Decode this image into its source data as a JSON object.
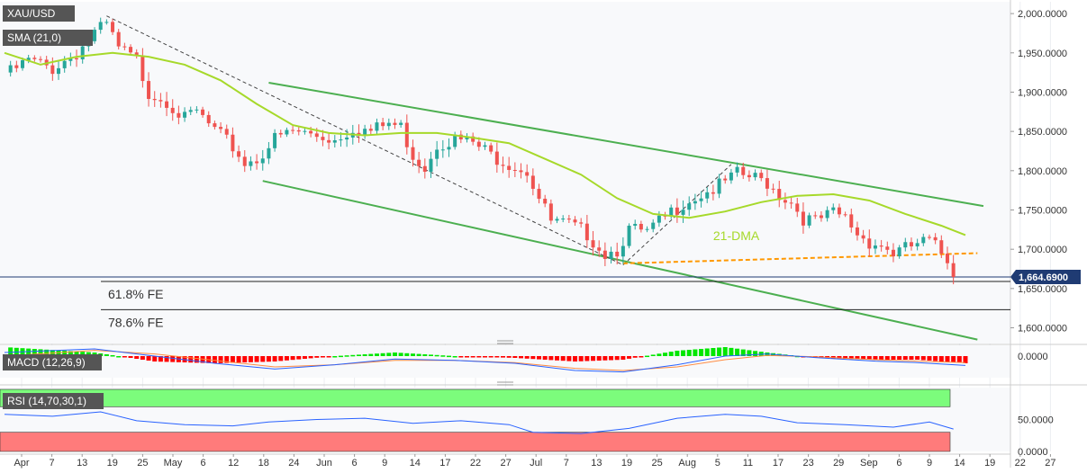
{
  "colors": {
    "up": "#26a69a",
    "down": "#ef5350",
    "sma": "#a6d92a",
    "channel": "#4caf50",
    "dashed_black": "#444444",
    "orange": "#ff9800",
    "macd_line": "#2962ff",
    "signal_line": "#ff8c42",
    "hist_pos": "#00e600",
    "hist_neg": "#ff0000",
    "rsi_line": "#2962ff",
    "overbought": "#7cfc7c",
    "oversold": "#ff7b7b",
    "price_tag": "#1f3b73",
    "legend_bg": "#555555"
  },
  "panels": {
    "price": {
      "symbol": "XAU/USD",
      "indicator": "SMA (21,0)"
    },
    "macd": {
      "label": "MACD (12,26,9)",
      "tick_label": "0.0000"
    },
    "rsi": {
      "label": "RSI (14,70,30,1)",
      "tick_labels": [
        "50.0000",
        "0.0000"
      ]
    }
  },
  "chart_data": {
    "type": "candlestick",
    "instrument": "XAU/USD",
    "timeframe": "daily",
    "y_ticks": [
      "2,000.0000",
      "1,950.0000",
      "1,900.0000",
      "1,850.0000",
      "1,800.0000",
      "1,750.0000",
      "1,700.0000",
      "1,650.0000",
      "1,600.0000"
    ],
    "y_tick_values": [
      2000,
      1950,
      1900,
      1850,
      1800,
      1750,
      1700,
      1650,
      1600
    ],
    "ylim": [
      1580,
      2015
    ],
    "x_tick_labels": [
      "Apr",
      "7",
      "13",
      "19",
      "25",
      "May",
      "6",
      "12",
      "18",
      "24",
      "Jun",
      "6",
      "9",
      "14",
      "17",
      "22",
      "27",
      "Jul",
      "7",
      "13",
      "19",
      "25",
      "Aug",
      "5",
      "11",
      "17",
      "23",
      "29",
      "Sep",
      "6",
      "9",
      "14",
      "19",
      "22",
      "27"
    ],
    "last_price": 1664.69,
    "last_price_label": "1,664.6900",
    "close_path": [
      {
        "t": 0,
        "c": 1925
      },
      {
        "t": 4,
        "c": 1945
      },
      {
        "t": 8,
        "c": 1935
      },
      {
        "t": 12,
        "c": 1955
      },
      {
        "t": 15,
        "c": 1980
      },
      {
        "t": 17,
        "c": 1990
      },
      {
        "t": 19,
        "c": 1960
      },
      {
        "t": 22,
        "c": 1945
      },
      {
        "t": 24,
        "c": 1905
      },
      {
        "t": 27,
        "c": 1895
      },
      {
        "t": 30,
        "c": 1870
      },
      {
        "t": 32,
        "c": 1880
      },
      {
        "t": 35,
        "c": 1855
      },
      {
        "t": 38,
        "c": 1835
      },
      {
        "t": 40,
        "c": 1815
      },
      {
        "t": 42,
        "c": 1820
      },
      {
        "t": 45,
        "c": 1845
      },
      {
        "t": 48,
        "c": 1855
      },
      {
        "t": 52,
        "c": 1850
      },
      {
        "t": 55,
        "c": 1845
      },
      {
        "t": 58,
        "c": 1860
      },
      {
        "t": 61,
        "c": 1855
      },
      {
        "t": 64,
        "c": 1865
      },
      {
        "t": 66,
        "c": 1860
      },
      {
        "t": 68,
        "c": 1825
      },
      {
        "t": 70,
        "c": 1810
      },
      {
        "t": 72,
        "c": 1840
      },
      {
        "t": 75,
        "c": 1845
      },
      {
        "t": 78,
        "c": 1840
      },
      {
        "t": 81,
        "c": 1825
      },
      {
        "t": 84,
        "c": 1815
      },
      {
        "t": 87,
        "c": 1805
      },
      {
        "t": 89,
        "c": 1770
      },
      {
        "t": 91,
        "c": 1740
      },
      {
        "t": 94,
        "c": 1735
      },
      {
        "t": 97,
        "c": 1725
      },
      {
        "t": 100,
        "c": 1700
      },
      {
        "t": 102,
        "c": 1705
      },
      {
        "t": 104,
        "c": 1730
      },
      {
        "t": 107,
        "c": 1725
      },
      {
        "t": 110,
        "c": 1745
      },
      {
        "t": 113,
        "c": 1765
      },
      {
        "t": 116,
        "c": 1775
      },
      {
        "t": 119,
        "c": 1785
      },
      {
        "t": 122,
        "c": 1800
      },
      {
        "t": 125,
        "c": 1795
      },
      {
        "t": 127,
        "c": 1790
      },
      {
        "t": 129,
        "c": 1775
      },
      {
        "t": 131,
        "c": 1765
      },
      {
        "t": 133,
        "c": 1745
      },
      {
        "t": 135,
        "c": 1740
      },
      {
        "t": 138,
        "c": 1750
      },
      {
        "t": 140,
        "c": 1745
      },
      {
        "t": 142,
        "c": 1725
      },
      {
        "t": 144,
        "c": 1715
      },
      {
        "t": 146,
        "c": 1710
      },
      {
        "t": 148,
        "c": 1700
      },
      {
        "t": 150,
        "c": 1705
      },
      {
        "t": 152,
        "c": 1712
      },
      {
        "t": 154,
        "c": 1715
      },
      {
        "t": 156,
        "c": 1700
      },
      {
        "t": 157,
        "c": 1692
      },
      {
        "t": 158,
        "c": 1665
      }
    ],
    "sma_path": [
      {
        "t": 0,
        "v": 1950
      },
      {
        "t": 6,
        "v": 1935
      },
      {
        "t": 12,
        "v": 1945
      },
      {
        "t": 18,
        "v": 1950
      },
      {
        "t": 24,
        "v": 1945
      },
      {
        "t": 30,
        "v": 1935
      },
      {
        "t": 36,
        "v": 1915
      },
      {
        "t": 42,
        "v": 1885
      },
      {
        "t": 48,
        "v": 1858
      },
      {
        "t": 54,
        "v": 1848
      },
      {
        "t": 60,
        "v": 1845
      },
      {
        "t": 66,
        "v": 1848
      },
      {
        "t": 72,
        "v": 1848
      },
      {
        "t": 78,
        "v": 1842
      },
      {
        "t": 84,
        "v": 1835
      },
      {
        "t": 90,
        "v": 1815
      },
      {
        "t": 96,
        "v": 1795
      },
      {
        "t": 102,
        "v": 1765
      },
      {
        "t": 108,
        "v": 1745
      },
      {
        "t": 114,
        "v": 1740
      },
      {
        "t": 120,
        "v": 1748
      },
      {
        "t": 126,
        "v": 1760
      },
      {
        "t": 132,
        "v": 1768
      },
      {
        "t": 138,
        "v": 1770
      },
      {
        "t": 144,
        "v": 1762
      },
      {
        "t": 150,
        "v": 1745
      },
      {
        "t": 156,
        "v": 1730
      },
      {
        "t": 160,
        "v": 1718
      }
    ],
    "x_range": [
      0,
      166
    ],
    "channel_upper": [
      {
        "t": 44,
        "v": 1912
      },
      {
        "t": 163,
        "v": 1755
      }
    ],
    "channel_lower": [
      {
        "t": 43,
        "v": 1787
      },
      {
        "t": 162,
        "v": 1585
      }
    ],
    "dashed_trend_down": [
      {
        "t": 17,
        "v": 1997
      },
      {
        "t": 103,
        "v": 1680
      }
    ],
    "dashed_trend_up": [
      {
        "t": 103,
        "v": 1680
      },
      {
        "t": 121,
        "v": 1808
      }
    ],
    "orange_support": [
      {
        "t": 103,
        "v": 1682
      },
      {
        "t": 162,
        "v": 1695
      }
    ],
    "fib_levels": [
      {
        "label": "61.8% FE",
        "price": 1659
      },
      {
        "label": "78.6% FE",
        "price": 1623
      }
    ],
    "annotations": [
      {
        "text": "21-DMA",
        "t": 118,
        "v": 1732
      }
    ],
    "macd": {
      "ylim": [
        -0.3,
        0.15
      ],
      "macd_path": [
        {
          "t": 0,
          "v": 0.05
        },
        {
          "t": 15,
          "v": 0.1
        },
        {
          "t": 25,
          "v": 0.0
        },
        {
          "t": 35,
          "v": -0.1
        },
        {
          "t": 45,
          "v": -0.18
        },
        {
          "t": 55,
          "v": -0.12
        },
        {
          "t": 65,
          "v": -0.04
        },
        {
          "t": 75,
          "v": -0.06
        },
        {
          "t": 85,
          "v": -0.1
        },
        {
          "t": 95,
          "v": -0.2
        },
        {
          "t": 103,
          "v": -0.22
        },
        {
          "t": 112,
          "v": -0.12
        },
        {
          "t": 120,
          "v": 0.0
        },
        {
          "t": 127,
          "v": 0.03
        },
        {
          "t": 135,
          "v": -0.02
        },
        {
          "t": 145,
          "v": -0.07
        },
        {
          "t": 152,
          "v": -0.09
        },
        {
          "t": 160,
          "v": -0.13
        }
      ],
      "signal_path": [
        {
          "t": 0,
          "v": 0.0
        },
        {
          "t": 15,
          "v": 0.08
        },
        {
          "t": 25,
          "v": 0.03
        },
        {
          "t": 35,
          "v": -0.06
        },
        {
          "t": 45,
          "v": -0.15
        },
        {
          "t": 55,
          "v": -0.12
        },
        {
          "t": 65,
          "v": -0.06
        },
        {
          "t": 75,
          "v": -0.06
        },
        {
          "t": 85,
          "v": -0.09
        },
        {
          "t": 95,
          "v": -0.17
        },
        {
          "t": 103,
          "v": -0.2
        },
        {
          "t": 112,
          "v": -0.15
        },
        {
          "t": 120,
          "v": -0.05
        },
        {
          "t": 127,
          "v": 0.01
        },
        {
          "t": 135,
          "v": -0.01
        },
        {
          "t": 145,
          "v": -0.05
        },
        {
          "t": 152,
          "v": -0.07
        },
        {
          "t": 160,
          "v": -0.09
        }
      ]
    },
    "rsi": {
      "ylim": [
        0,
        100
      ],
      "overbought": 70,
      "oversold": 30,
      "path": [
        {
          "t": 0,
          "v": 58
        },
        {
          "t": 8,
          "v": 55
        },
        {
          "t": 16,
          "v": 62
        },
        {
          "t": 22,
          "v": 48
        },
        {
          "t": 30,
          "v": 42
        },
        {
          "t": 38,
          "v": 40
        },
        {
          "t": 44,
          "v": 46
        },
        {
          "t": 52,
          "v": 50
        },
        {
          "t": 60,
          "v": 52
        },
        {
          "t": 68,
          "v": 44
        },
        {
          "t": 76,
          "v": 48
        },
        {
          "t": 84,
          "v": 42
        },
        {
          "t": 88,
          "v": 30
        },
        {
          "t": 96,
          "v": 28
        },
        {
          "t": 104,
          "v": 36
        },
        {
          "t": 112,
          "v": 52
        },
        {
          "t": 120,
          "v": 58
        },
        {
          "t": 126,
          "v": 55
        },
        {
          "t": 132,
          "v": 45
        },
        {
          "t": 140,
          "v": 42
        },
        {
          "t": 148,
          "v": 38
        },
        {
          "t": 154,
          "v": 46
        },
        {
          "t": 158,
          "v": 35
        }
      ]
    }
  }
}
